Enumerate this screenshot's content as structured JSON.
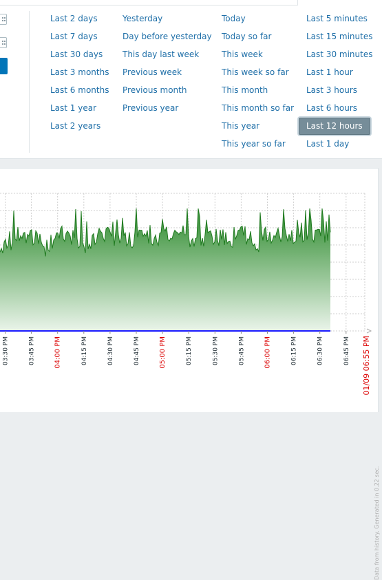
{
  "filter": {
    "columns": [
      [
        "Last 2 days",
        "Last 7 days",
        "Last 30 days",
        "Last 3 months",
        "Last 6 months",
        "Last 1 year",
        "Last 2 years"
      ],
      [
        "Yesterday",
        "Day before yesterday",
        "This day last week",
        "Previous week",
        "Previous month",
        "Previous year"
      ],
      [
        "Today",
        "Today so far",
        "This week",
        "This week so far",
        "This month",
        "This month so far",
        "This year",
        "This year so far"
      ],
      [
        "Last 5 minutes",
        "Last 15 minutes",
        "Last 30 minutes",
        "Last 1 hour",
        "Last 3 hours",
        "Last 6 hours",
        "Last 12 hours",
        "Last 1 day"
      ]
    ],
    "selected": "Last 12 hours"
  },
  "graph": {
    "x_labels": [
      {
        "text": "03:30 PM",
        "major": false
      },
      {
        "text": "03:45 PM",
        "major": false
      },
      {
        "text": "04:00 PM",
        "major": true
      },
      {
        "text": "04:15 PM",
        "major": false
      },
      {
        "text": "04:30 PM",
        "major": false
      },
      {
        "text": "04:45 PM",
        "major": false
      },
      {
        "text": "05:00 PM",
        "major": true
      },
      {
        "text": "05:15 PM",
        "major": false
      },
      {
        "text": "05:30 PM",
        "major": false
      },
      {
        "text": "05:45 PM",
        "major": false
      },
      {
        "text": "06:00 PM",
        "major": true
      },
      {
        "text": "06:15 PM",
        "major": false
      },
      {
        "text": "06:30 PM",
        "major": false
      },
      {
        "text": "06:45 PM",
        "major": false
      }
    ],
    "end_label": "01/09 06:55 PM",
    "footer": "Data from history. Generated in 0.22 sec.",
    "colors": {
      "major_label": "#dc0000",
      "minor_label": "#1f2c33",
      "line": "#1f7a1f",
      "fill_top": "#2e8b2e",
      "fill_bottom": "#eaf4ea",
      "baseline": "#1a1aff",
      "grid": "#cfcfcf"
    }
  }
}
